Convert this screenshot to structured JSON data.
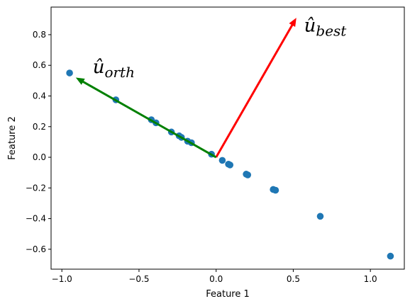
{
  "chart_data": {
    "type": "scatter",
    "xlabel": "Feature 1",
    "ylabel": "Feature 2",
    "xlim": [
      -1.07,
      1.22
    ],
    "ylim": [
      -0.73,
      0.98
    ],
    "xticks": [
      -1.0,
      -0.5,
      0.0,
      0.5,
      1.0
    ],
    "yticks": [
      -0.6,
      -0.4,
      -0.2,
      0.0,
      0.2,
      0.4,
      0.6,
      0.8
    ],
    "xtick_labels": [
      "−1.0",
      "−0.5",
      "0.0",
      "0.5",
      "1.0"
    ],
    "ytick_labels": [
      "−0.6",
      "−0.4",
      "−0.2",
      "0.0",
      "0.2",
      "0.4",
      "0.6",
      "0.8"
    ],
    "grid": false,
    "series": [
      {
        "color": "#1f77b4",
        "points": [
          [
            -0.95,
            0.55
          ],
          [
            -0.65,
            0.375
          ],
          [
            -0.42,
            0.245
          ],
          [
            -0.39,
            0.225
          ],
          [
            -0.29,
            0.165
          ],
          [
            -0.24,
            0.14
          ],
          [
            -0.225,
            0.13
          ],
          [
            -0.185,
            0.105
          ],
          [
            -0.16,
            0.095
          ],
          [
            -0.03,
            0.02
          ],
          [
            0.04,
            -0.02
          ],
          [
            0.08,
            -0.045
          ],
          [
            0.09,
            -0.05
          ],
          [
            0.195,
            -0.11
          ],
          [
            0.205,
            -0.115
          ],
          [
            0.37,
            -0.21
          ],
          [
            0.385,
            -0.215
          ],
          [
            0.675,
            -0.385
          ],
          [
            1.13,
            -0.645
          ]
        ]
      }
    ],
    "vectors": [
      {
        "name": "best",
        "from": [
          0,
          0
        ],
        "to": [
          0.52,
          0.91
        ],
        "color": "#ff0000",
        "label_base": "û",
        "label_sub": "best",
        "label_pos": [
          0.57,
          0.82
        ]
      },
      {
        "name": "orth",
        "from": [
          0,
          0
        ],
        "to": [
          -0.91,
          0.52
        ],
        "color": "#008000",
        "label_base": "û",
        "label_sub": "orth",
        "label_pos": [
          -0.8,
          0.55
        ]
      }
    ]
  }
}
